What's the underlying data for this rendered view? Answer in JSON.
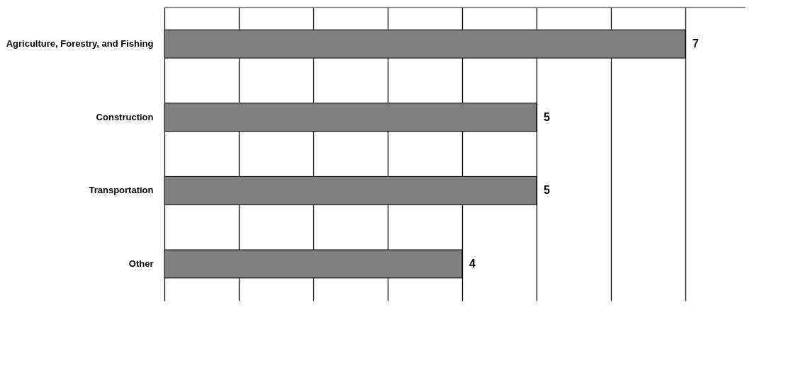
{
  "chart_data": {
    "type": "bar",
    "orientation": "horizontal",
    "categories": [
      "Agriculture, Forestry, and Fishing",
      "Construction",
      "Transportation",
      "Other"
    ],
    "values": [
      7,
      5,
      5,
      4
    ],
    "color": "#808080",
    "data_labels": true,
    "xlim": [
      0,
      7.8
    ],
    "xticks": [
      {
        "value": 0,
        "label": null
      },
      {
        "value": 1,
        "label": null
      },
      {
        "value": 2,
        "label": null
      },
      {
        "value": 3,
        "label": null
      },
      {
        "value": 4,
        "label": null
      },
      {
        "value": 5,
        "label": null
      },
      {
        "value": 6,
        "label": null
      },
      {
        "value": 7,
        "label": null
      }
    ],
    "grid": "x",
    "tick_labels": "y"
  }
}
